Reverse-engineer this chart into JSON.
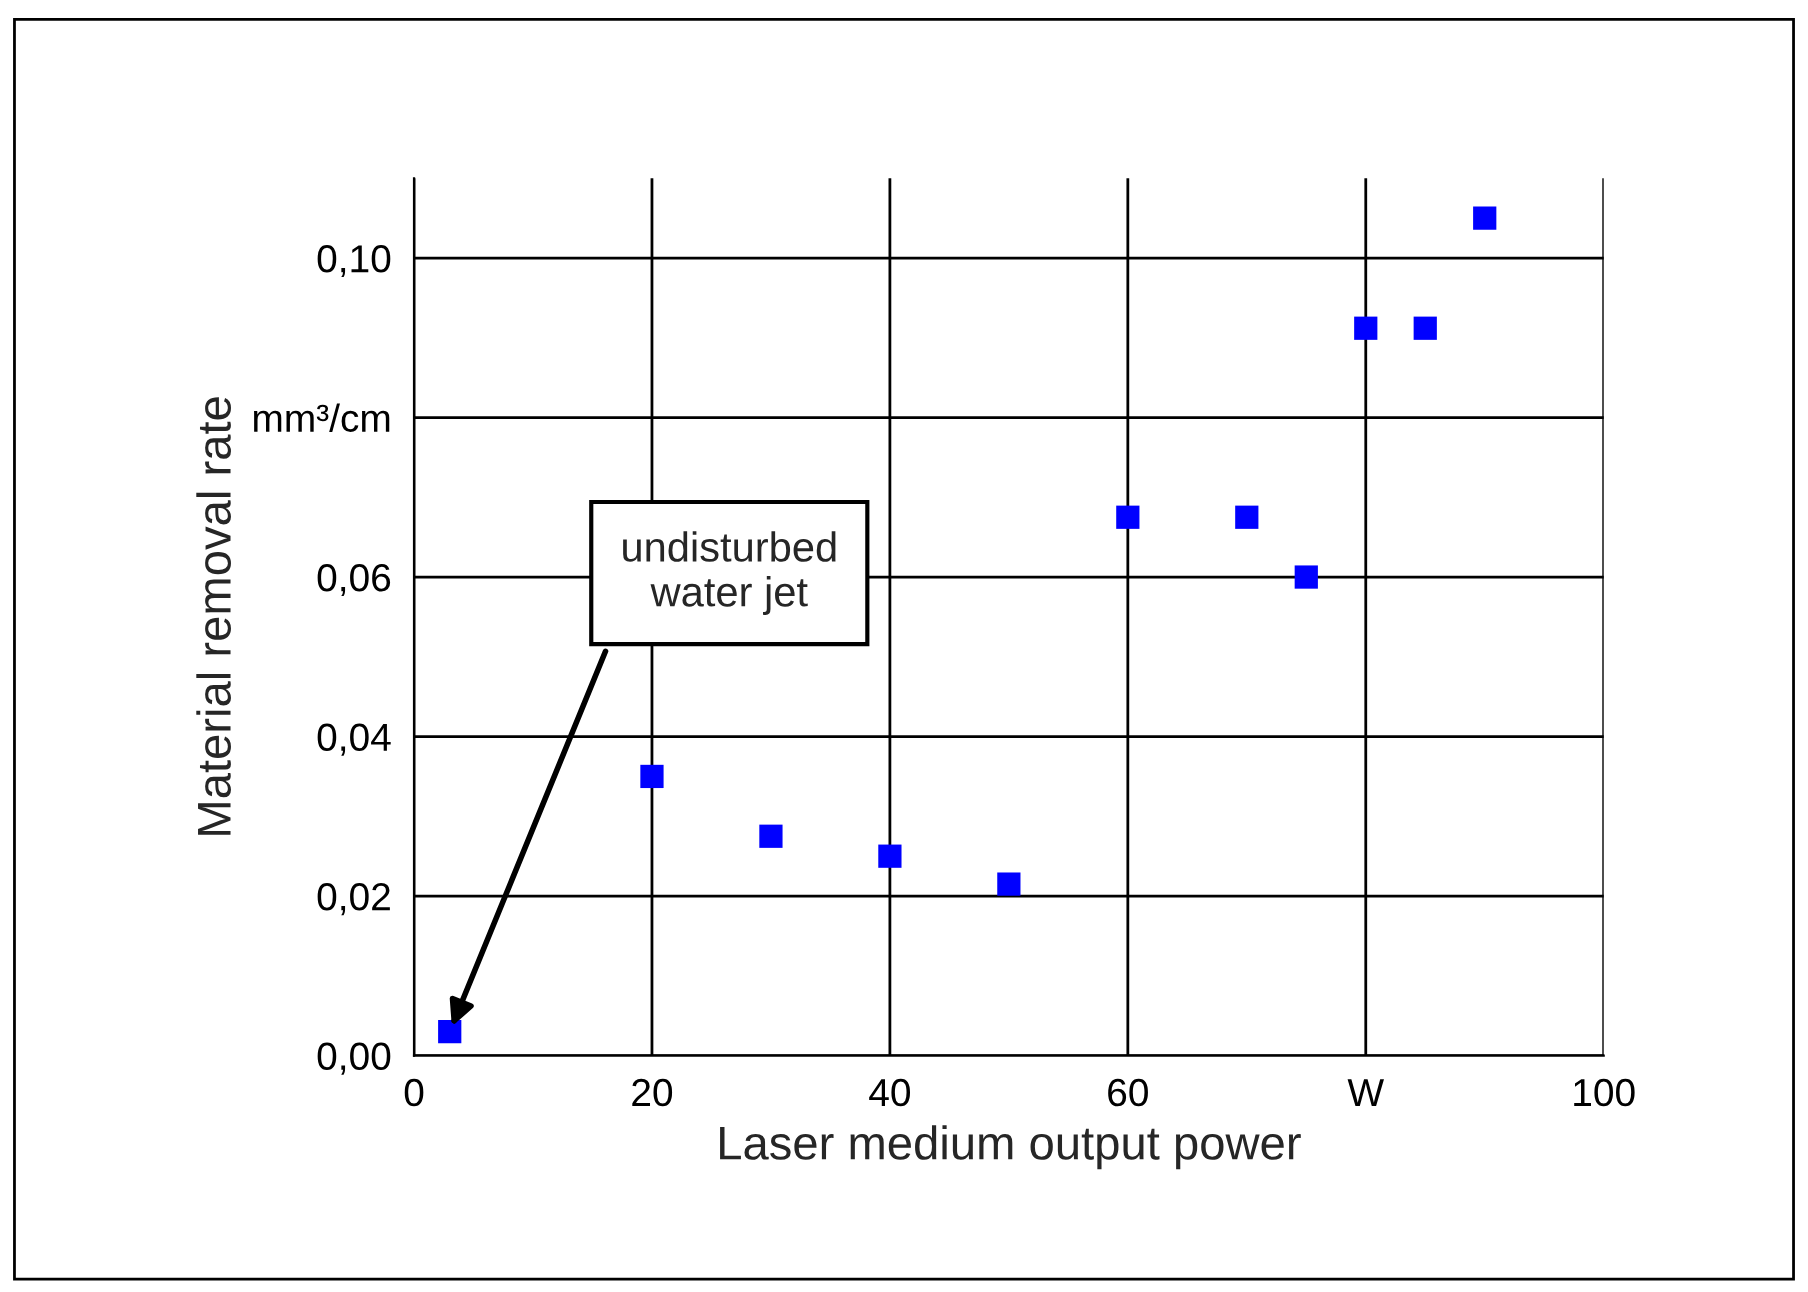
{
  "chart_data": {
    "type": "scatter",
    "xlabel": "Laser medium output power",
    "ylabel": "Material removal rate",
    "x": [
      3,
      20,
      30,
      40,
      50,
      60,
      70,
      75,
      80,
      85,
      90
    ],
    "values": [
      0.003,
      0.035,
      0.0275,
      0.025,
      0.0215,
      0.0675,
      0.0675,
      0.06,
      0.0912,
      0.0912,
      0.105
    ],
    "color": "#0000ff",
    "marker": "square",
    "xlim": [
      0,
      100
    ],
    "ylim": [
      0,
      0.11
    ],
    "xticks": [
      0,
      20,
      40,
      60,
      {
        "value": 80,
        "label": "W"
      },
      100
    ],
    "yticks": [
      {
        "value": 0,
        "label": "0,00"
      },
      {
        "value": 0.02,
        "label": "0,02"
      },
      {
        "value": 0.04,
        "label": "0,04"
      },
      {
        "value": 0.06,
        "label": "0,06"
      },
      {
        "value": 0.08,
        "label": "mm³/cm"
      },
      {
        "value": 0.1,
        "label": "0,10"
      }
    ],
    "grid": true,
    "legend": false,
    "annotations": [
      {
        "text": "undisturbed\nwater jet",
        "x": 3,
        "y": 0.003
      }
    ]
  }
}
